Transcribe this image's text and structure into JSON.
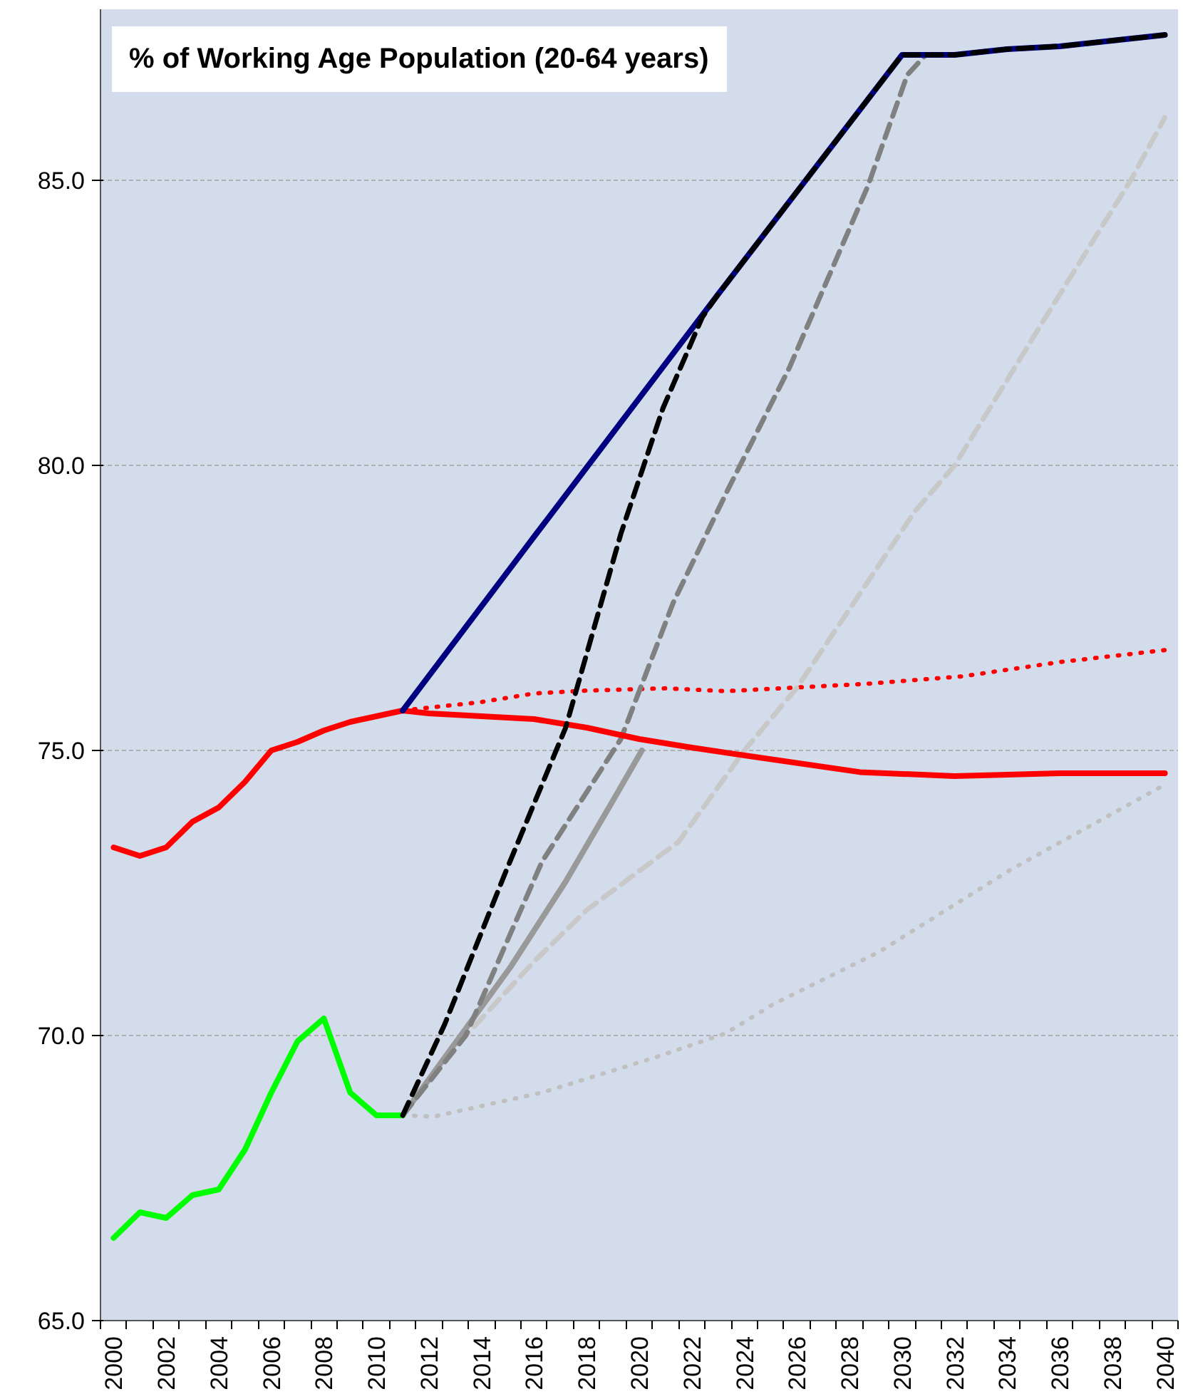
{
  "chart_data": {
    "type": "line",
    "title": "% of Working Age Population (20-64 years)",
    "xlim": [
      1999.5,
      2040.5
    ],
    "ylim": [
      65,
      88
    ],
    "xticks": [
      2000,
      2002,
      2004,
      2006,
      2008,
      2010,
      2012,
      2014,
      2016,
      2018,
      2020,
      2022,
      2024,
      2026,
      2028,
      2030,
      2032,
      2034,
      2036,
      2038,
      2040
    ],
    "yticks": [
      {
        "value": 65,
        "label": "65.0"
      },
      {
        "value": 70,
        "label": "70.0"
      },
      {
        "value": 75,
        "label": "75.0"
      },
      {
        "value": 80,
        "label": "80.0"
      },
      {
        "value": 85,
        "label": "85.0"
      }
    ],
    "grid": "y",
    "series": [
      {
        "color": "#ff0000",
        "line_style": "dotted",
        "x": [
          2011,
          2014,
          2016,
          2018,
          2021,
          2023.3,
          2028.7,
          2032.3,
          2036,
          2040
        ],
        "values": [
          75.7,
          75.85,
          76.0,
          76.05,
          76.09,
          76.04,
          76.17,
          76.3,
          76.55,
          76.76
        ]
      },
      {
        "color": "#c0c0c0",
        "line_style": "dotted",
        "x": [
          2011,
          2012.2,
          2016.3,
          2020.5,
          2023.3,
          2025.1,
          2029.1,
          2034.1,
          2040
        ],
        "values": [
          68.6,
          68.58,
          69.0,
          69.6,
          70.04,
          70.55,
          71.46,
          72.9,
          74.4
        ]
      },
      {
        "color": "#c8c8c8",
        "line_style": "dashed",
        "x": [
          2011,
          2013.4,
          2016,
          2018,
          2021.5,
          2024,
          2026,
          2030.5,
          2032,
          2036,
          2038.7,
          2040
        ],
        "values": [
          68.6,
          70.0,
          71.3,
          72.2,
          73.4,
          75.0,
          76.1,
          79.2,
          80.0,
          83.0,
          85.0,
          86.1
        ]
      },
      {
        "color": "#999999",
        "line_style": "solid",
        "x": [
          2011,
          2015.1,
          2017.2,
          2019.1,
          2020.1
        ],
        "values": [
          68.6,
          71.2,
          72.7,
          74.2,
          75.0
        ]
      },
      {
        "color": "#808080",
        "line_style": "dashed",
        "x": [
          2011,
          2013.4,
          2016.3,
          2019.3,
          2021.3,
          2023.4,
          2025.7,
          2028.7,
          2030.2,
          2030.9
        ],
        "values": [
          68.6,
          70.0,
          73.05,
          75.2,
          77.6,
          79.6,
          81.7,
          84.9,
          86.85,
          87.2
        ]
      },
      {
        "color": "#ff0000",
        "line_style": "solid",
        "x": [
          2000,
          2001,
          2002,
          2003,
          2004,
          2005,
          2006,
          2007,
          2008,
          2009,
          2010,
          2011,
          2012,
          2014,
          2016,
          2018,
          2020,
          2022,
          2024.2,
          2028.4,
          2032,
          2036,
          2040
        ],
        "values": [
          73.3,
          73.15,
          73.3,
          73.75,
          74.0,
          74.45,
          75.0,
          75.15,
          75.35,
          75.5,
          75.6,
          75.7,
          75.65,
          75.6,
          75.55,
          75.4,
          75.2,
          75.05,
          74.9,
          74.62,
          74.55,
          74.6,
          74.6
        ]
      },
      {
        "color": "#00ff00",
        "line_style": "solid",
        "x": [
          2000,
          2001,
          2002,
          2003,
          2004,
          2005,
          2006,
          2007,
          2008,
          2009,
          2010,
          2011
        ],
        "values": [
          66.45,
          66.9,
          66.8,
          67.2,
          67.3,
          68.0,
          69.0,
          69.9,
          70.3,
          69.0,
          68.6,
          68.6
        ]
      },
      {
        "color": "#000080",
        "line_style": "solid",
        "x": [
          2011,
          2016,
          2023,
          2030,
          2031,
          2032,
          2034,
          2036,
          2038,
          2040
        ],
        "values": [
          75.7,
          78.75,
          83.0,
          87.2,
          87.2,
          87.2,
          87.3,
          87.35,
          87.45,
          87.55
        ]
      },
      {
        "color": "#000000",
        "line_style": "dashed",
        "x": [
          2011,
          2012.6,
          2014.9,
          2017.2,
          2019.3,
          2020.9,
          2022.4,
          2023,
          2030,
          2031,
          2032,
          2034,
          2036,
          2038,
          2040
        ],
        "values": [
          68.6,
          70.2,
          72.85,
          75.4,
          78.8,
          81.0,
          82.6,
          83.0,
          87.2,
          87.2,
          87.2,
          87.3,
          87.35,
          87.45,
          87.55
        ]
      }
    ]
  }
}
